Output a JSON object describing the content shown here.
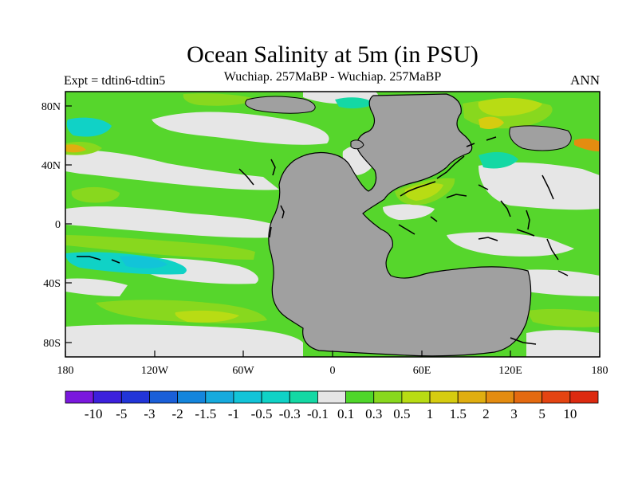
{
  "title": "Ocean Salinity at 5m (in PSU)",
  "subtitle": "Wuchiap. 257MaBP - Wuchiap. 257MaBP",
  "experiment": "Expt = tdtin6-tdtin5",
  "season": "ANN",
  "colors": {
    "land": "#a0a0a0",
    "frame": "#000000"
  },
  "axes": {
    "x_ticks": [
      "180",
      "120W",
      "60W",
      "0",
      "60E",
      "120E",
      "180"
    ],
    "y_ticks": [
      "80N",
      "40N",
      "0",
      "40S",
      "80S"
    ]
  },
  "colorbar": {
    "labels": [
      "-10",
      "-5",
      "-3",
      "-2",
      "-1.5",
      "-1",
      "-0.5",
      "-0.3",
      "-0.1",
      "0.1",
      "0.3",
      "0.5",
      "1",
      "1.5",
      "2",
      "3",
      "5",
      "10"
    ],
    "colors": [
      "#7a18dd",
      "#3c20dc",
      "#2235d8",
      "#1a5fd8",
      "#1485dc",
      "#16aadd",
      "#12c4d8",
      "#10d2c6",
      "#14d8a4",
      "#e6e6e6",
      "#4fd62a",
      "#88d81e",
      "#b8dc14",
      "#d6cc10",
      "#e0ae10",
      "#e48c10",
      "#e46a10",
      "#e44412",
      "#dc2a10"
    ]
  }
}
